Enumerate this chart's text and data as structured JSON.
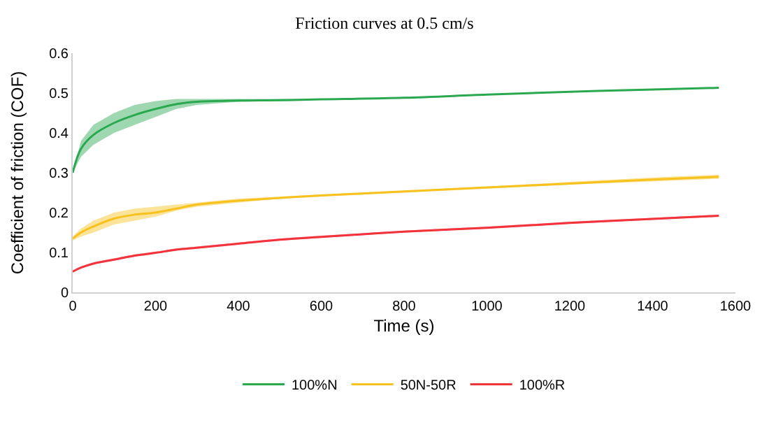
{
  "chart_data": {
    "type": "line",
    "title": "Friction curves at 0.5 cm/s",
    "xlabel": "Time (s)",
    "ylabel": "Coefficient of friction (COF)",
    "x": [
      0,
      20,
      50,
      100,
      150,
      200,
      250,
      300,
      400,
      500,
      600,
      800,
      1000,
      1200,
      1400,
      1560
    ],
    "series": [
      {
        "name": "100%N",
        "color": "#2aa84f",
        "values": [
          0.3,
          0.36,
          0.395,
          0.425,
          0.445,
          0.46,
          0.472,
          0.478,
          0.481,
          0.482,
          0.484,
          0.488,
          0.496,
          0.503,
          0.509,
          0.513
        ],
        "lower": [
          0.3,
          0.34,
          0.37,
          0.4,
          0.42,
          0.44,
          0.46,
          0.47,
          0.478,
          0.48,
          0.483,
          0.487,
          0.495,
          0.502,
          0.508,
          0.512
        ],
        "upper": [
          0.3,
          0.38,
          0.42,
          0.45,
          0.47,
          0.48,
          0.485,
          0.485,
          0.485,
          0.485,
          0.485,
          0.49,
          0.497,
          0.504,
          0.51,
          0.514
        ]
      },
      {
        "name": "50N-50R",
        "color": "#f7c21e",
        "values": [
          0.135,
          0.15,
          0.165,
          0.185,
          0.195,
          0.2,
          0.21,
          0.22,
          0.23,
          0.237,
          0.243,
          0.253,
          0.263,
          0.273,
          0.283,
          0.29
        ],
        "lower": [
          0.13,
          0.14,
          0.15,
          0.17,
          0.18,
          0.19,
          0.205,
          0.215,
          0.225,
          0.235,
          0.24,
          0.25,
          0.26,
          0.27,
          0.278,
          0.285
        ],
        "upper": [
          0.14,
          0.16,
          0.18,
          0.2,
          0.21,
          0.215,
          0.22,
          0.225,
          0.235,
          0.24,
          0.245,
          0.255,
          0.265,
          0.277,
          0.288,
          0.295
        ]
      },
      {
        "name": "100%R",
        "color": "#f2333c",
        "values": [
          0.052,
          0.062,
          0.072,
          0.082,
          0.092,
          0.099,
          0.107,
          0.112,
          0.122,
          0.132,
          0.139,
          0.152,
          0.162,
          0.174,
          0.184,
          0.192
        ],
        "lower": [
          0.05,
          0.06,
          0.07,
          0.08,
          0.09,
          0.097,
          0.105,
          0.11,
          0.12,
          0.13,
          0.137,
          0.15,
          0.16,
          0.172,
          0.182,
          0.19
        ],
        "upper": [
          0.055,
          0.065,
          0.075,
          0.085,
          0.095,
          0.102,
          0.11,
          0.115,
          0.125,
          0.135,
          0.142,
          0.155,
          0.165,
          0.177,
          0.187,
          0.195
        ]
      }
    ],
    "xlim": [
      0,
      1600
    ],
    "xticks": [
      0,
      200,
      400,
      600,
      800,
      1000,
      1200,
      1400,
      1600
    ],
    "ylim": [
      0,
      0.6
    ],
    "yticks": [
      0,
      0.1,
      0.2,
      0.3,
      0.4,
      0.5,
      0.6
    ],
    "legend": "bottom",
    "marker": "none",
    "line_style": "solid"
  }
}
